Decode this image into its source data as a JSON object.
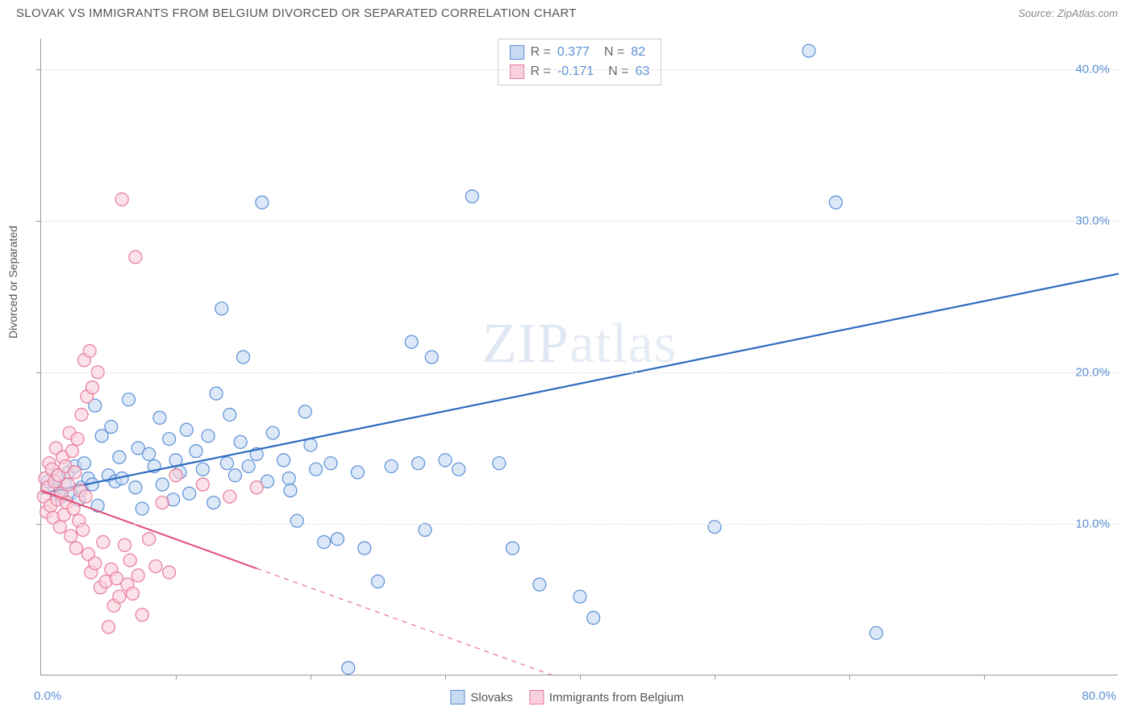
{
  "title": "SLOVAK VS IMMIGRANTS FROM BELGIUM DIVORCED OR SEPARATED CORRELATION CHART",
  "source": "Source: ZipAtlas.com",
  "ylabel": "Divorced or Separated",
  "watermark_a": "ZIP",
  "watermark_b": "atlas",
  "chart": {
    "type": "scatter",
    "xlim": [
      0,
      80
    ],
    "ylim": [
      0,
      42
    ],
    "xaxis_min_label": "0.0%",
    "xaxis_max_label": "80.0%",
    "ytick_positions": [
      10,
      20,
      30,
      40
    ],
    "ytick_labels": [
      "10.0%",
      "20.0%",
      "30.0%",
      "40.0%"
    ],
    "xtick_positions": [
      10,
      20,
      30,
      40,
      50,
      60,
      70
    ],
    "grid_color": "#dddddd",
    "background_color": "#ffffff",
    "axis_color": "#999999",
    "tick_label_color": "#5a8fd6",
    "point_radius": 8,
    "point_stroke_width": 1.2
  },
  "series": [
    {
      "name": "Slovaks",
      "fill": "#c9dbf2",
      "stroke": "#5a8fd6",
      "fill_opacity": 0.65,
      "r": "0.377",
      "n": "82",
      "trend": {
        "x1": 0,
        "y1": 12.0,
        "x2": 80,
        "y2": 26.5,
        "solid_until_x": 80,
        "color": "#2e6bc0",
        "width": 2.2
      },
      "points": [
        [
          0.5,
          12.8
        ],
        [
          1,
          12.2
        ],
        [
          1.2,
          13.2
        ],
        [
          1.5,
          11.8
        ],
        [
          1.8,
          12.6
        ],
        [
          2,
          13.4
        ],
        [
          2.2,
          12.0
        ],
        [
          2.5,
          13.8
        ],
        [
          2.8,
          11.6
        ],
        [
          3,
          12.4
        ],
        [
          3.2,
          14.0
        ],
        [
          3.5,
          13.0
        ],
        [
          3.8,
          12.6
        ],
        [
          4,
          17.8
        ],
        [
          4.2,
          11.2
        ],
        [
          4.5,
          15.8
        ],
        [
          5,
          13.2
        ],
        [
          5.2,
          16.4
        ],
        [
          5.5,
          12.8
        ],
        [
          5.8,
          14.4
        ],
        [
          6,
          13.0
        ],
        [
          6.5,
          18.2
        ],
        [
          7,
          12.4
        ],
        [
          7.2,
          15.0
        ],
        [
          7.5,
          11.0
        ],
        [
          8,
          14.6
        ],
        [
          8.4,
          13.8
        ],
        [
          8.8,
          17.0
        ],
        [
          9,
          12.6
        ],
        [
          9.5,
          15.6
        ],
        [
          10,
          14.2
        ],
        [
          10.3,
          13.4
        ],
        [
          10.8,
          16.2
        ],
        [
          11,
          12.0
        ],
        [
          11.5,
          14.8
        ],
        [
          12,
          13.6
        ],
        [
          12.4,
          15.8
        ],
        [
          12.8,
          11.4
        ],
        [
          13,
          18.6
        ],
        [
          13.4,
          24.2
        ],
        [
          13.8,
          14.0
        ],
        [
          14,
          17.2
        ],
        [
          14.4,
          13.2
        ],
        [
          14.8,
          15.4
        ],
        [
          15,
          21.0
        ],
        [
          15.4,
          13.8
        ],
        [
          16,
          14.6
        ],
        [
          16.4,
          31.2
        ],
        [
          16.8,
          12.8
        ],
        [
          17.2,
          16.0
        ],
        [
          18,
          14.2
        ],
        [
          18.4,
          13.0
        ],
        [
          19,
          10.2
        ],
        [
          19.6,
          17.4
        ],
        [
          20,
          15.2
        ],
        [
          20.4,
          13.6
        ],
        [
          21,
          8.8
        ],
        [
          21.5,
          14.0
        ],
        [
          22,
          9.0
        ],
        [
          22.8,
          0.5
        ],
        [
          23.5,
          13.4
        ],
        [
          24,
          8.4
        ],
        [
          25,
          6.2
        ],
        [
          26,
          13.8
        ],
        [
          27.5,
          22.0
        ],
        [
          28,
          14.0
        ],
        [
          28.5,
          9.6
        ],
        [
          29,
          21.0
        ],
        [
          30,
          14.2
        ],
        [
          31,
          13.6
        ],
        [
          32,
          31.6
        ],
        [
          34,
          14.0
        ],
        [
          35,
          8.4
        ],
        [
          37,
          6.0
        ],
        [
          40,
          5.2
        ],
        [
          41,
          3.8
        ],
        [
          50,
          9.8
        ],
        [
          57,
          41.2
        ],
        [
          59,
          31.2
        ],
        [
          62,
          2.8
        ],
        [
          18.5,
          12.2
        ],
        [
          9.8,
          11.6
        ]
      ]
    },
    {
      "name": "Immigrants from Belgium",
      "fill": "#f9d1dc",
      "stroke": "#e87a9a",
      "fill_opacity": 0.65,
      "r": "-0.171",
      "n": "63",
      "trend": {
        "x1": 0,
        "y1": 12.2,
        "x2": 38,
        "y2": 0,
        "solid_until_x": 16,
        "color": "#e24d78",
        "width": 2.0
      },
      "points": [
        [
          0.2,
          11.8
        ],
        [
          0.3,
          13.0
        ],
        [
          0.4,
          10.8
        ],
        [
          0.5,
          12.4
        ],
        [
          0.6,
          14.0
        ],
        [
          0.7,
          11.2
        ],
        [
          0.8,
          13.6
        ],
        [
          0.9,
          10.4
        ],
        [
          1.0,
          12.8
        ],
        [
          1.1,
          15.0
        ],
        [
          1.2,
          11.6
        ],
        [
          1.3,
          13.2
        ],
        [
          1.4,
          9.8
        ],
        [
          1.5,
          12.0
        ],
        [
          1.6,
          14.4
        ],
        [
          1.7,
          10.6
        ],
        [
          1.8,
          13.8
        ],
        [
          1.9,
          11.4
        ],
        [
          2.0,
          12.6
        ],
        [
          2.1,
          16.0
        ],
        [
          2.2,
          9.2
        ],
        [
          2.3,
          14.8
        ],
        [
          2.4,
          11.0
        ],
        [
          2.5,
          13.4
        ],
        [
          2.6,
          8.4
        ],
        [
          2.7,
          15.6
        ],
        [
          2.8,
          10.2
        ],
        [
          2.9,
          12.2
        ],
        [
          3.0,
          17.2
        ],
        [
          3.1,
          9.6
        ],
        [
          3.2,
          20.8
        ],
        [
          3.3,
          11.8
        ],
        [
          3.4,
          18.4
        ],
        [
          3.5,
          8.0
        ],
        [
          3.6,
          21.4
        ],
        [
          3.7,
          6.8
        ],
        [
          3.8,
          19.0
        ],
        [
          4.0,
          7.4
        ],
        [
          4.2,
          20.0
        ],
        [
          4.4,
          5.8
        ],
        [
          4.6,
          8.8
        ],
        [
          4.8,
          6.2
        ],
        [
          5.0,
          3.2
        ],
        [
          5.2,
          7.0
        ],
        [
          5.4,
          4.6
        ],
        [
          5.6,
          6.4
        ],
        [
          5.8,
          5.2
        ],
        [
          6.0,
          31.4
        ],
        [
          6.2,
          8.6
        ],
        [
          6.4,
          6.0
        ],
        [
          6.6,
          7.6
        ],
        [
          6.8,
          5.4
        ],
        [
          7.0,
          27.6
        ],
        [
          7.2,
          6.6
        ],
        [
          7.5,
          4.0
        ],
        [
          8.0,
          9.0
        ],
        [
          8.5,
          7.2
        ],
        [
          9.0,
          11.4
        ],
        [
          9.5,
          6.8
        ],
        [
          10,
          13.2
        ],
        [
          12,
          12.6
        ],
        [
          14,
          11.8
        ],
        [
          16,
          12.4
        ]
      ]
    }
  ],
  "bottom_legend": {
    "items": [
      "Slovaks",
      "Immigrants from Belgium"
    ]
  }
}
